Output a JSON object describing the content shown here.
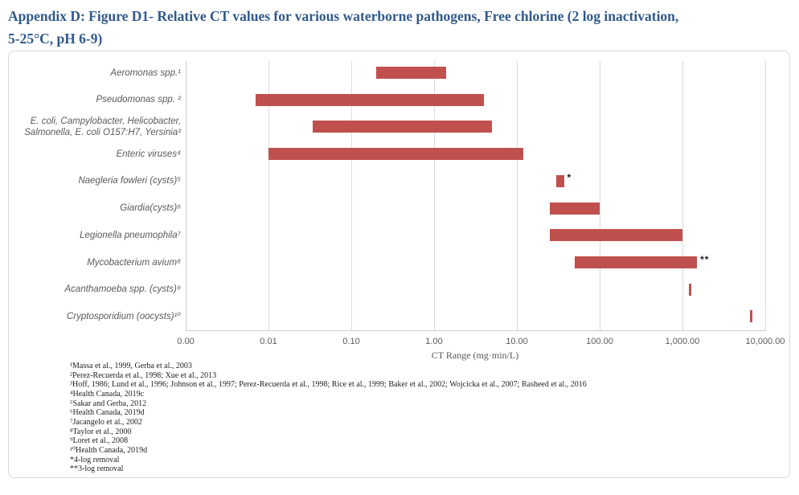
{
  "title": "Appendix D: Figure D1- Relative CT values for various waterborne pathogens, Free chlorine (2 log inactivation,\n5-25°C, pH 6-9)",
  "colors": {
    "title_text": "#31598B",
    "bar": "#C0504D",
    "gridline": "#DBDBDB",
    "axis_text": "#595959",
    "footnote_text": "#1F1F1F",
    "chart_border": "#D9D9D9"
  },
  "chart_data": {
    "type": "bar",
    "orientation": "horizontal-range",
    "title": "Appendix D: Figure D1- Relative CT values for various waterborne pathogens, Free chlorine (2 log inactivation, 5-25°C, pH 6-9)",
    "xlabel": "CT Range (mg·min/L)",
    "ylabel": "",
    "grid": "vertical-on",
    "legend": "none",
    "x_axis": {
      "scale": "log",
      "min": 0.001,
      "max": 10000,
      "tick_values": [
        0.001,
        0.01,
        0.1,
        1,
        10,
        100,
        1000,
        10000
      ],
      "tick_labels": [
        "0.00",
        "0.01",
        "0.10",
        "1.00",
        "10.00",
        "100.00",
        "1,000.00",
        "10,000.00"
      ]
    },
    "series": [
      {
        "label": "Aeromonas spp.¹",
        "low": 0.2,
        "high": 1.4,
        "marker": ""
      },
      {
        "label": "Pseudomonas spp. ²",
        "low": 0.007,
        "high": 4,
        "marker": ""
      },
      {
        "label": "E. coli, Campylobacter, Helicobacter,\nSalmonella, E. coli O157:H7, Yersinia³",
        "low": 0.034,
        "high": 5,
        "marker": ""
      },
      {
        "label": "Enteric viruses⁴",
        "low": 0.01,
        "high": 12,
        "marker": ""
      },
      {
        "label": "Naegleria fowleri (cysts)⁵",
        "low": 30,
        "high": 37,
        "marker": "*"
      },
      {
        "label": "Giardia(cysts)⁶",
        "low": 25,
        "high": 100,
        "marker": ""
      },
      {
        "label": "Legionella pneumophila⁷",
        "low": 25,
        "high": 1000,
        "marker": ""
      },
      {
        "label": "Mycobacterium avium⁸",
        "low": 50,
        "high": 1500,
        "marker": "**"
      },
      {
        "label": "Acanthamoeba spp. (cysts)⁹",
        "low": 1250,
        "high": 1250,
        "marker": ""
      },
      {
        "label": "Cryptosporidium (oocysts)¹⁰",
        "low": 6800,
        "high": 6800,
        "marker": ""
      }
    ],
    "footnotes": [
      "¹Massa et al., 1999, Gerba et al., 2003",
      "²Perez-Recuerda et al., 1998; Xue et al., 2013",
      "³Hoff, 1986; Lund et al., 1996; Johnson et al., 1997; Perez-Recuerda et al., 1998; Rice et al., 1999; Baker et al., 2002; Wojcicka et al., 2007; Rasheed et al., 2016",
      "⁴Health Canada, 2019c",
      "⁵Sakar and Gerba, 2012",
      "⁶Health Canada, 2019d",
      "⁷Jacangelo et al., 2002",
      "⁸Taylor et al., 2000",
      "⁹Loret et al., 2008",
      "¹⁰Health Canada, 2019d",
      "*4-log removal",
      "**3-log removal"
    ]
  }
}
